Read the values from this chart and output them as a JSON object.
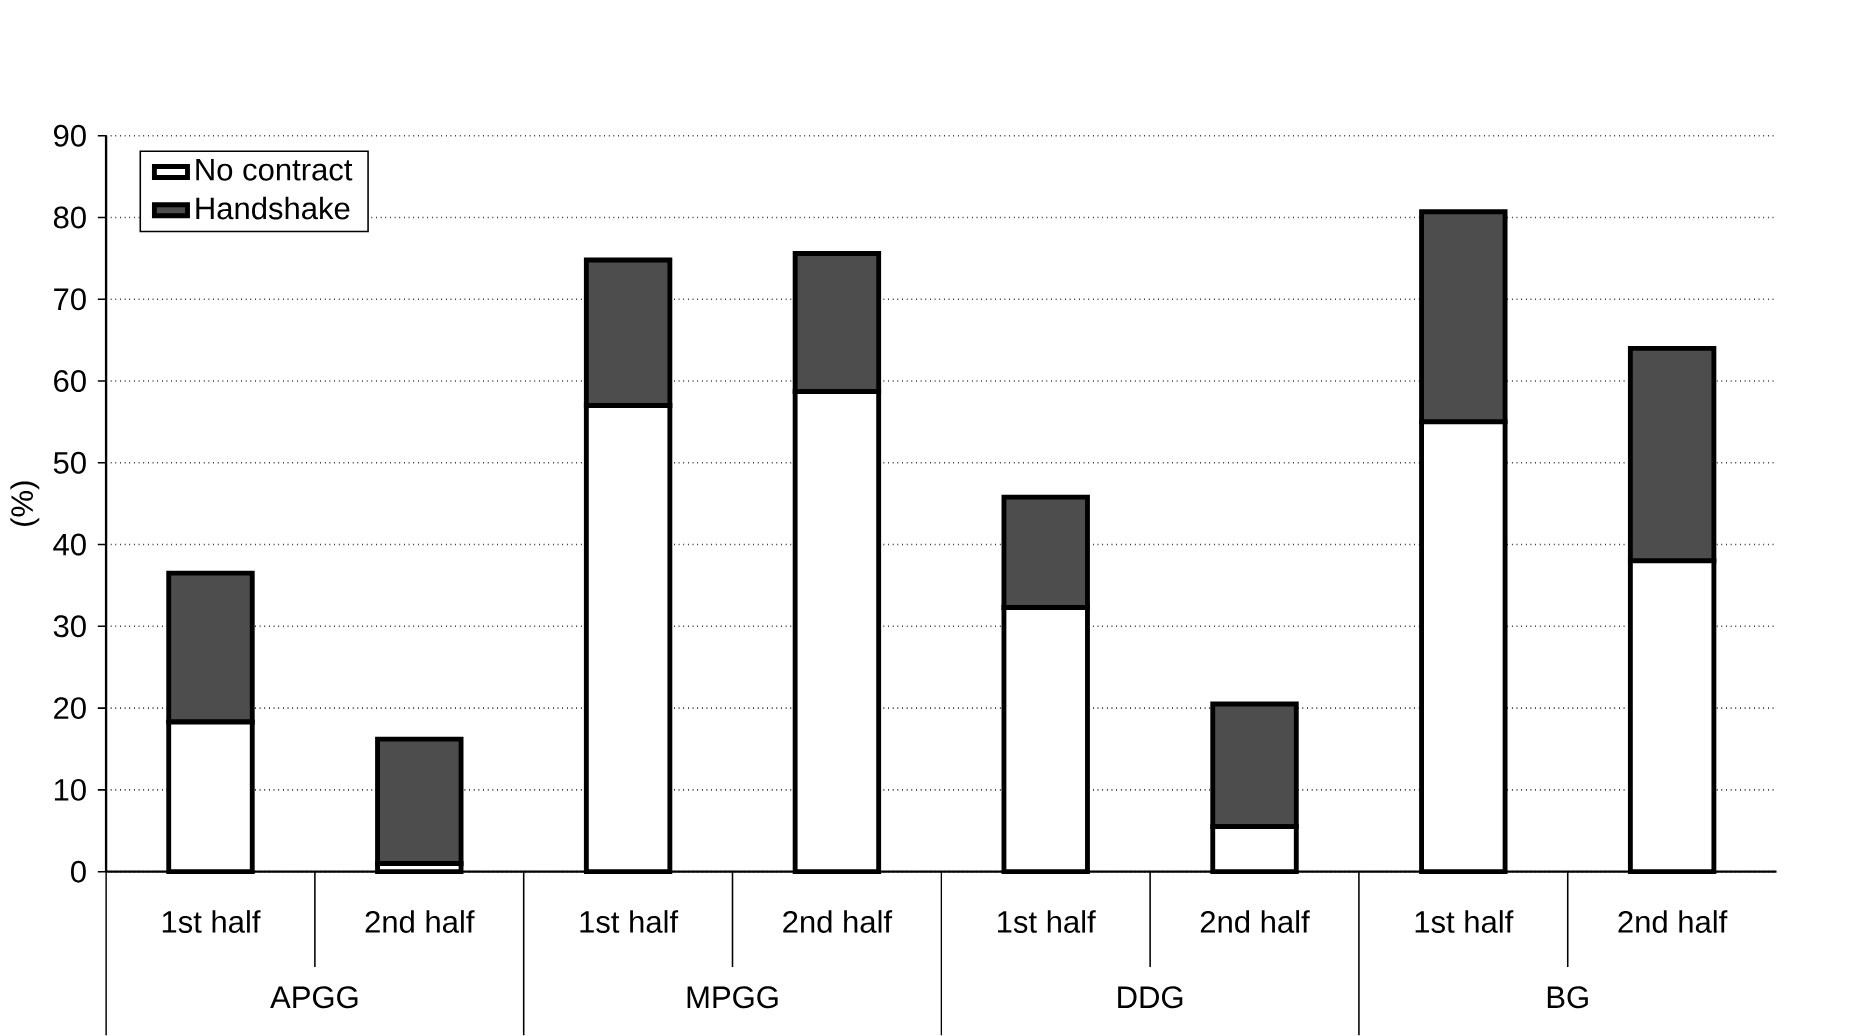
{
  "chart_data": {
    "type": "bar",
    "stacked": true,
    "ylabel": "(%)",
    "categories": [
      "1st half",
      "2nd half",
      "1st half",
      "2nd half",
      "1st half",
      "2nd half",
      "1st half",
      "2nd half"
    ],
    "annotations": [
      "APGG",
      "MPGG",
      "DDG",
      "BG"
    ],
    "series": [
      {
        "name": "No contract",
        "color": "#ffffff",
        "values": [
          18.3,
          1.0,
          57.0,
          58.7,
          32.3,
          5.5,
          55.0,
          38.0
        ]
      },
      {
        "name": "Handshake",
        "color": "#4d4d4d",
        "values": [
          18.2,
          15.2,
          17.8,
          16.9,
          13.5,
          15.0,
          25.7,
          26.0
        ]
      }
    ],
    "ylim": [
      0,
      90
    ],
    "yticks": [
      0,
      10,
      20,
      30,
      40,
      50,
      60,
      70,
      80,
      90
    ],
    "grid": "y",
    "legend": "top left"
  }
}
